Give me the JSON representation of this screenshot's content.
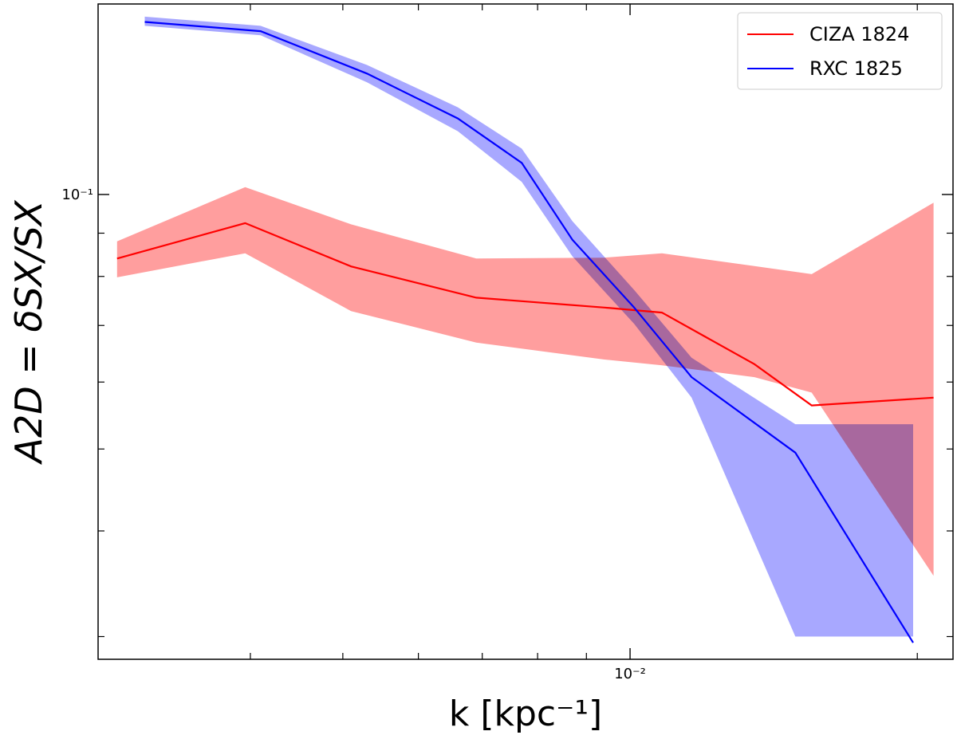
{
  "chart_data": {
    "type": "line",
    "title": "",
    "xlabel": "k [kpc⁻¹]",
    "ylabel": "A2D = δSX/SX",
    "xscale": "log",
    "yscale": "log",
    "xlim": [
      0.00277,
      0.0218
    ],
    "ylim": [
      0.0282,
      0.168
    ],
    "x_tick_labels": [
      {
        "value": 0.01,
        "label": "10⁻²"
      }
    ],
    "y_tick_labels": [
      {
        "value": 0.1,
        "label": "10⁻¹"
      }
    ],
    "x_minor_ticks": [
      0.004,
      0.005,
      0.006,
      0.007,
      0.008,
      0.009,
      0.02
    ],
    "y_minor_ticks": [
      0.03,
      0.04,
      0.05,
      0.06,
      0.07,
      0.08,
      0.09
    ],
    "grid": false,
    "legend_position": "top-right",
    "series": [
      {
        "name": "CIZA 1824",
        "color": "#ff0000",
        "band_color": "#ff9999",
        "x": [
          0.0029,
          0.00395,
          0.0051,
          0.0069,
          0.0094,
          0.0108,
          0.0135,
          0.0155,
          0.0208
        ],
        "y": [
          0.084,
          0.0925,
          0.0822,
          0.0755,
          0.0735,
          0.0725,
          0.063,
          0.0563,
          0.0575
        ],
        "y_low": [
          0.0798,
          0.0852,
          0.0728,
          0.0668,
          0.0638,
          0.0628,
          0.0608,
          0.0583,
          0.0354
        ],
        "y_high": [
          0.088,
          0.102,
          0.0922,
          0.084,
          0.0842,
          0.0852,
          0.0823,
          0.0805,
          0.0978
        ]
      },
      {
        "name": "RXC 1825",
        "color": "#0000ff",
        "band_color": "#9999ff",
        "x": [
          0.0031,
          0.0041,
          0.0053,
          0.0066,
          0.0077,
          0.0087,
          0.0101,
          0.0116,
          0.0149,
          0.0198
        ],
        "y": [
          0.16,
          0.156,
          0.139,
          0.123,
          0.109,
          0.0884,
          0.0735,
          0.0608,
          0.0495,
          0.0295
        ],
        "y_low": [
          0.1583,
          0.1543,
          0.1357,
          0.1188,
          0.1035,
          0.0845,
          0.0703,
          0.0575,
          0.03,
          0.03
        ],
        "y_high": [
          0.1623,
          0.1583,
          0.1423,
          0.1268,
          0.1133,
          0.093,
          0.0771,
          0.0641,
          0.0535,
          0.0535
        ]
      }
    ]
  }
}
